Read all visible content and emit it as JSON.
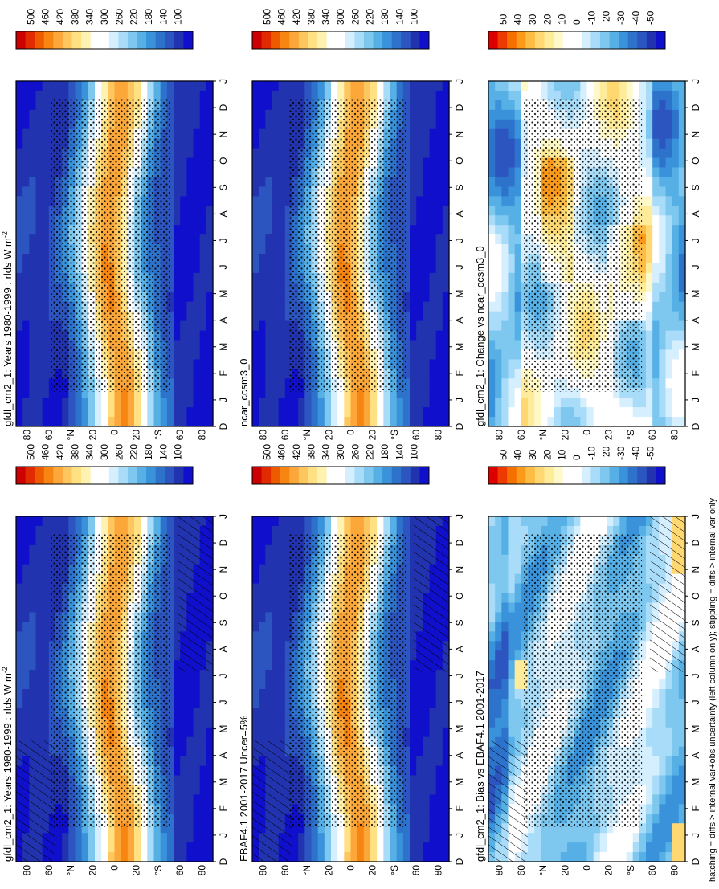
{
  "footnote": "hatching = diffs > internal var+obs uncertainty (left column only); stippling = diffs > internal var only",
  "month_labels": [
    "D",
    "J",
    "F",
    "M",
    "A",
    "M",
    "J",
    "J",
    "A",
    "S",
    "O",
    "N",
    "D",
    "J"
  ],
  "lat_ticks": [
    "80",
    "60",
    "°N",
    "20",
    "0",
    "20",
    "°S",
    "60",
    "80"
  ],
  "colorbars": {
    "absolute": {
      "labels": [
        "500",
        "460",
        "420",
        "380",
        "340",
        "300",
        "260",
        "220",
        "180",
        "140",
        "100"
      ],
      "colors": [
        "#cc0000",
        "#e02a00",
        "#ee5a00",
        "#f78512",
        "#fba73a",
        "#fdc65e",
        "#ffe083",
        "#fff2b0",
        "#ffffff",
        "#ffffff",
        "#d6efff",
        "#a8dcf8",
        "#7ec7ef",
        "#56b0e6",
        "#3a93da",
        "#2d73cc",
        "#2c55c0",
        "#2233b0",
        "#1010cc"
      ]
    },
    "difference": {
      "labels": [
        "50",
        "40",
        "30",
        "20",
        "10",
        "0",
        "-10",
        "-20",
        "-30",
        "-40",
        "-50"
      ],
      "colors": [
        "#dd0000",
        "#ee3a00",
        "#f67000",
        "#fb9a1a",
        "#fdbd45",
        "#ffd872",
        "#ffec9a",
        "#fff8c8",
        "#ffffff",
        "#ffffff",
        "#d6efff",
        "#a8dcf8",
        "#7ec7ef",
        "#56b0e6",
        "#3a93da",
        "#2d73cc",
        "#2c55c0",
        "#2233b0",
        "#1010cc"
      ]
    }
  },
  "chart_data": [
    {
      "type": "heatmap",
      "title": "gfdl_cm2_1: Years 1980-1999 : rlds W m",
      "title_sup": "-2",
      "x_axis": "month (D–J)",
      "y_axis": "latitude (90S–90N)",
      "scale": "absolute",
      "hatching": true,
      "stippling": true,
      "pattern": "abs"
    },
    {
      "type": "heatmap",
      "title": "gfdl_cm2_1: Years 1980-1999 : rlds W m",
      "title_sup": "-2",
      "x_axis": "month (D–J)",
      "y_axis": "latitude (90S–90N)",
      "scale": "absolute",
      "hatching": false,
      "stippling": true,
      "pattern": "abs"
    },
    {
      "type": "heatmap",
      "title": "EBAF4.1 2001-2017 Uncer=5%",
      "title_sup": "",
      "x_axis": "month (D–J)",
      "y_axis": "latitude (90S–90N)",
      "scale": "absolute",
      "hatching": true,
      "stippling": true,
      "pattern": "abs"
    },
    {
      "type": "heatmap",
      "title": "ncar_ccsm3_0",
      "title_sup": "",
      "x_axis": "month (D–J)",
      "y_axis": "latitude (90S–90N)",
      "scale": "absolute",
      "hatching": false,
      "stippling": true,
      "pattern": "abs"
    },
    {
      "type": "heatmap",
      "title": "gfdl_cm2_1: Bias vs EBAF4.1 2001-2017",
      "title_sup": "",
      "x_axis": "month (D–J)",
      "y_axis": "latitude (90S–90N)",
      "scale": "difference",
      "hatching": true,
      "stippling": true,
      "pattern": "bias"
    },
    {
      "type": "heatmap",
      "title": "gfdl_cm2_1: Change vs ncar_ccsm3_0",
      "title_sup": "",
      "x_axis": "month (D–J)",
      "y_axis": "latitude (90S–90N)",
      "scale": "difference",
      "hatching": false,
      "stippling": true,
      "pattern": "change"
    }
  ]
}
